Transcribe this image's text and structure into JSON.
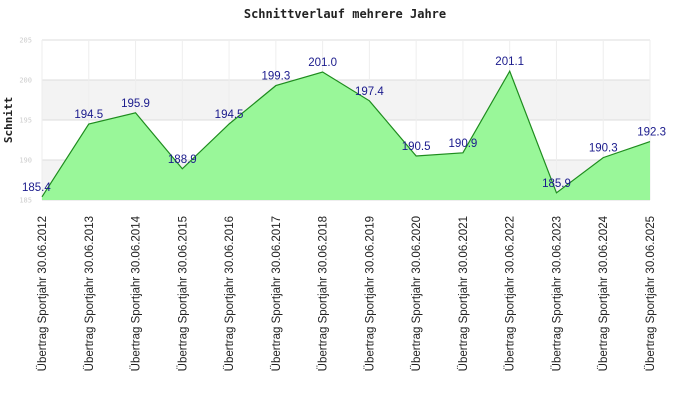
{
  "chart_data": {
    "type": "area",
    "title": "Schnittverlauf mehrere Jahre",
    "ylabel": "Schnitt",
    "xlabel": "",
    "ylim": [
      185,
      205
    ],
    "yticks": [
      "185",
      "190",
      "195",
      "200",
      "205"
    ],
    "grid": true,
    "legend": "none",
    "categories": [
      "Übertrag Sportjahr 30.06.2012",
      "Übertrag Sportjahr 30.06.2013",
      "Übertrag Sportjahr 30.06.2014",
      "Übertrag Sportjahr 30.06.2015",
      "Übertrag Sportjahr 30.06.2016",
      "Übertrag Sportjahr 30.06.2017",
      "Übertrag Sportjahr 30.06.2018",
      "Übertrag Sportjahr 30.06.2019",
      "Übertrag Sportjahr 30.06.2020",
      "Übertrag Sportjahr 30.06.2021",
      "Übertrag Sportjahr 30.06.2022",
      "Übertrag Sportjahr 30.06.2023",
      "Übertrag Sportjahr 30.06.2024",
      "Übertrag Sportjahr 30.06.2025"
    ],
    "values": [
      185.4,
      194.5,
      195.9,
      188.9,
      194.5,
      199.3,
      201.0,
      197.4,
      190.5,
      190.9,
      201.1,
      185.9,
      190.3,
      192.3
    ],
    "labels": [
      "185.4",
      "194.5",
      "195.9",
      "188.9",
      "194.5",
      "199.3",
      "201.0",
      "197.4",
      "190.5",
      "190.9",
      "201.1",
      "185.9",
      "190.3",
      "192.3"
    ],
    "colors": {
      "fill": "#99f799",
      "line": "#1e8c1e",
      "band": "#f3f3f3",
      "grid": "#dddddd",
      "label": "#1a1a8c"
    }
  }
}
